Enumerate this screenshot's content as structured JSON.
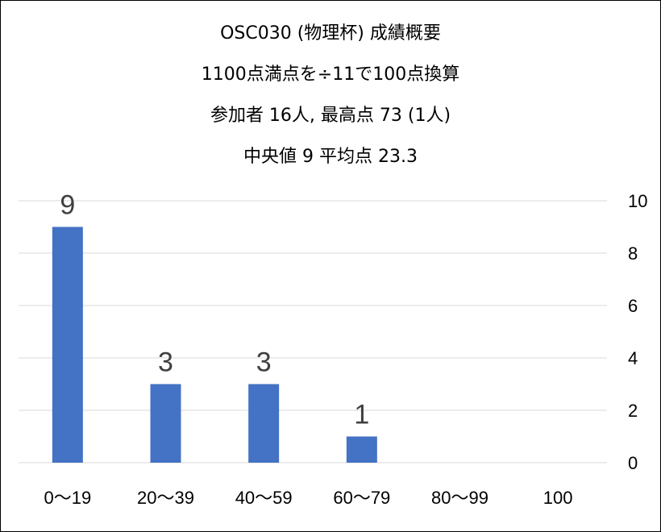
{
  "chart_data": {
    "type": "bar",
    "title": [
      "OSC030 (物理杯) 成績概要",
      "1100点満点を÷11で100点換算",
      "参加者 16人, 最高点 73 (1人)",
      "中央値 9 平均点 23.3"
    ],
    "categories": [
      "0～19",
      "20～39",
      "40～59",
      "60～79",
      "80～99",
      "100"
    ],
    "values": [
      9,
      3,
      3,
      1,
      0,
      0
    ],
    "data_labels": [
      "9",
      "3",
      "3",
      "1",
      "",
      ""
    ],
    "y_ticks": [
      "0",
      "2",
      "4",
      "6",
      "8",
      "10"
    ],
    "ylim": [
      0,
      10
    ],
    "y_axis_side": "right",
    "grid": true,
    "bar_color": "#4472C4",
    "grid_color": "#D9D9D9",
    "label_color": "#404040"
  }
}
